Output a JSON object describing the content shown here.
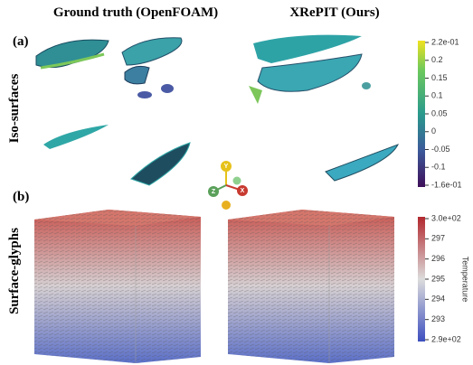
{
  "header": {
    "left": "Ground truth (OpenFOAM)",
    "right": "XRePIT (Ours)"
  },
  "rows": [
    {
      "tag": "(a)",
      "label": "Iso-surfaces"
    },
    {
      "tag": "(b)",
      "label": "Surface-glyphs"
    }
  ],
  "colorbar_iso": {
    "labels": [
      "2.2e-01",
      "0.2",
      "0.15",
      "0.1",
      "0.05",
      "0",
      "-0.05",
      "-0.1",
      "-1.6e-01"
    ]
  },
  "colorbar_temp": {
    "title": "Temperature",
    "labels": [
      "3.0e+02",
      "297",
      "296",
      "295",
      "294",
      "293",
      "2.9e+02"
    ]
  },
  "axes_glyph": {
    "y": "Y",
    "z": "Z",
    "x": "X"
  }
}
